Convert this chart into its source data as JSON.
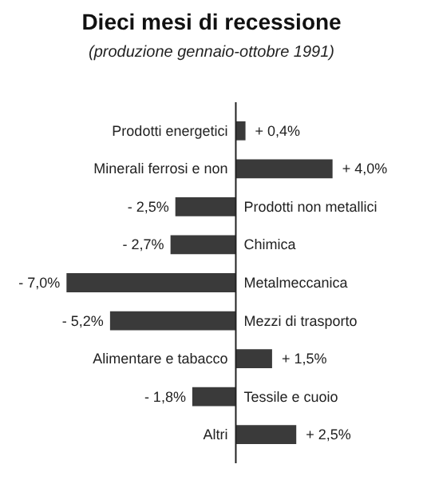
{
  "chart_data": {
    "type": "bar",
    "orientation": "horizontal",
    "title": "Dieci mesi di recessione",
    "subtitle": "(produzione gennaio-ottobre 1991)",
    "categories": [
      "Prodotti energetici",
      "Minerali ferrosi e non",
      "Prodotti non metallici",
      "Chimica",
      "Metalmeccanica",
      "Mezzi di trasporto",
      "Alimentare e tabacco",
      "Tessile e cuoio",
      "Altri"
    ],
    "values": [
      0.4,
      4.0,
      -2.5,
      -2.7,
      -7.0,
      -5.2,
      1.5,
      -1.8,
      2.5
    ],
    "value_labels": [
      "+ 0,4%",
      "+ 4,0%",
      "- 2,5%",
      "- 2,7%",
      "- 7,0%",
      "- 5,2%",
      "+ 1,5%",
      "- 1,8%",
      "+ 2,5%"
    ],
    "color": "#3a3a3a"
  }
}
